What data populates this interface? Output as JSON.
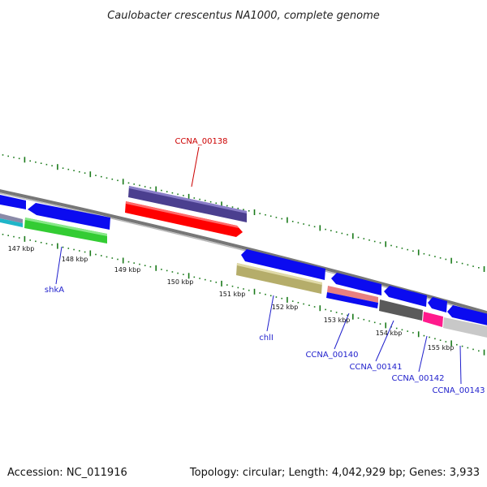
{
  "title": "Caulobacter crescentus NA1000, complete genome",
  "footer": {
    "accession": "Accession: NC_011916",
    "summary": "Topology: circular; Length: 4,042,929 bp; Genes: 3,933"
  },
  "colors": {
    "backbone": "#8c8c8c",
    "tick": "#1a7a1a",
    "label_blue": "#1f1fcc",
    "label_red": "#cc0000",
    "cds_blue": "#0b0bf0",
    "cds_red": "#ff0000",
    "cds_purple": "#4b3f8f",
    "cds_green": "#33cc33",
    "cds_khaki": "#b5ad6a",
    "cds_salmon": "#e88080",
    "cds_darkgray": "#5a5a5a",
    "cds_magenta": "#ff1a8c",
    "cds_lightgray": "#c8c8c8",
    "cds_cyan": "#1fb5c8"
  },
  "ticks": [
    {
      "label": "147 kbp"
    },
    {
      "label": "148 kbp"
    },
    {
      "label": "149 kbp"
    },
    {
      "label": "150 kbp"
    },
    {
      "label": "151 kbp"
    },
    {
      "label": "152 kbp"
    },
    {
      "label": "153 kbp"
    },
    {
      "label": "154 kbp"
    },
    {
      "label": "155 kbp"
    }
  ],
  "labels": [
    {
      "text": "CCNA_00138",
      "color": "red"
    },
    {
      "text": "shkA",
      "color": "blue"
    },
    {
      "text": "chlI",
      "color": "blue"
    },
    {
      "text": "CCNA_00140",
      "color": "blue"
    },
    {
      "text": "CCNA_00141",
      "color": "blue"
    },
    {
      "text": "CCNA_00142",
      "color": "blue"
    },
    {
      "text": "CCNA_00143",
      "color": "blue"
    }
  ]
}
